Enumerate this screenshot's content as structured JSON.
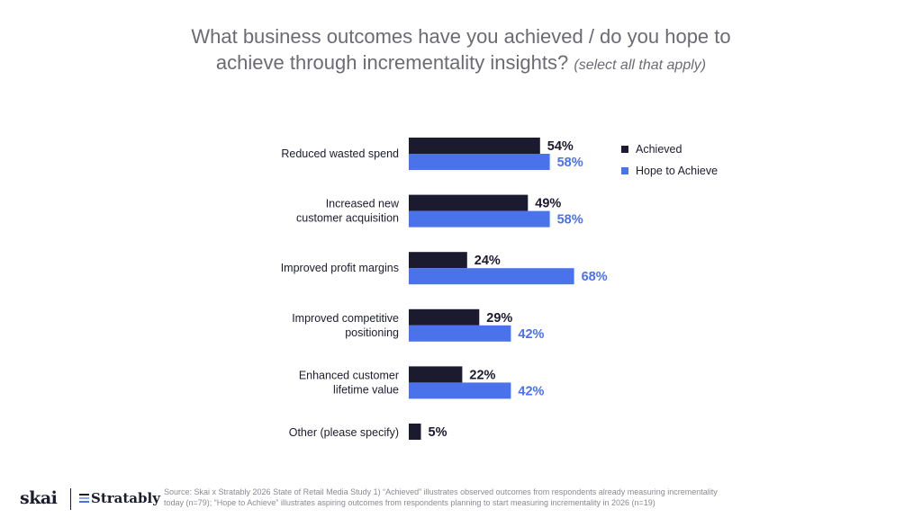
{
  "title": {
    "line1": "What business outcomes have you achieved / do you hope to",
    "line2": "achieve through incrementality insights?",
    "note": "(select all that apply)"
  },
  "colors": {
    "achieved": "#1b1a2e",
    "hope": "#4a72ea",
    "label": "#1c1c2e"
  },
  "chart_data": {
    "type": "bar",
    "orientation": "horizontal",
    "categories": [
      [
        "Reduced wasted spend"
      ],
      [
        "Increased new",
        "customer acquisition"
      ],
      [
        "Improved profit margins"
      ],
      [
        "Improved competitive",
        "positioning"
      ],
      [
        "Enhanced customer",
        "lifetime value"
      ],
      [
        "Other (please specify)"
      ]
    ],
    "series": [
      {
        "name": "Achieved",
        "color": "#1b1a2e",
        "values": [
          54,
          49,
          24,
          29,
          22,
          5
        ],
        "labels": [
          "54%",
          "49%",
          "24%",
          "29%",
          "22%",
          "5%"
        ]
      },
      {
        "name": "Hope to Achieve",
        "color": "#4a72ea",
        "values": [
          58,
          58,
          68,
          42,
          42,
          null
        ],
        "labels": [
          "58%",
          "58%",
          "68%",
          "42%",
          "42%",
          ""
        ]
      }
    ],
    "xlim": [
      0,
      100
    ],
    "legend": "right",
    "grid": false
  },
  "legend": {
    "achieved": "Achieved",
    "hope": "Hope to Achieve"
  },
  "footer": {
    "logo1": "skai",
    "logo2": "Stratably",
    "source_line1": "Source: Skai x Stratably 2026 State of Retail Media Study 1) “Achieved” illustrates observed outcomes from respondents already measuring incrementality",
    "source_line2": "today (n=79); ⁣“Hope to Achieve” illustrates aspiring outcomes from respondents planning to start measuring incrementality in 2026 (n=19)"
  }
}
